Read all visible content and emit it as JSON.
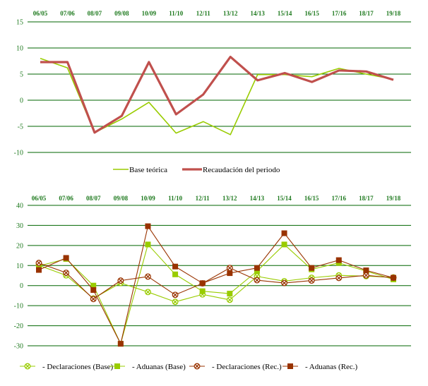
{
  "chart_data": [
    {
      "type": "line",
      "categories": [
        "06/05",
        "07/06",
        "08/07",
        "09/08",
        "10/09",
        "11/10",
        "12/11",
        "13/12",
        "14/13",
        "15/14",
        "16/15",
        "17/16",
        "18/17",
        "19/18"
      ],
      "ylim": [
        -10,
        15
      ],
      "yticks": [
        15,
        10,
        5,
        0,
        -5,
        -10
      ],
      "grid": true,
      "legend": "bottom",
      "series": [
        {
          "name": "Base teórica",
          "color": "#99cc00",
          "marker": "none",
          "width": "thin",
          "values": [
            8.0,
            6.2,
            -6.2,
            -3.6,
            -0.4,
            -6.3,
            -4.1,
            -6.6,
            4.9,
            4.9,
            4.5,
            6.1,
            5.0,
            4.0
          ]
        },
        {
          "name": "Recaudación del periodo",
          "color": "#c0504d",
          "marker": "none",
          "width": "thick",
          "values": [
            7.3,
            7.3,
            -6.2,
            -3.0,
            7.3,
            -2.7,
            1.1,
            8.3,
            3.8,
            5.2,
            3.5,
            5.7,
            5.5,
            3.9
          ]
        }
      ]
    },
    {
      "type": "line",
      "categories": [
        "06/05",
        "07/06",
        "08/07",
        "09/08",
        "10/09",
        "11/10",
        "12/11",
        "13/12",
        "14/13",
        "15/14",
        "16/15",
        "17/16",
        "18/17",
        "19/18"
      ],
      "ylim": [
        -30,
        40
      ],
      "yticks": [
        40,
        30,
        20,
        10,
        0,
        -10,
        -20,
        -30
      ],
      "grid": true,
      "legend": "bottom",
      "series": [
        {
          "name": "- Declaraciones (Base)",
          "color": "#99cc00",
          "marker": "x-circle",
          "values": [
            10.1,
            5.1,
            -6.4,
            1.3,
            -3.2,
            -8.1,
            -4.4,
            -7.1,
            4.6,
            2.2,
            3.9,
            5.1,
            4.7,
            4.1
          ]
        },
        {
          "name": "- Aduanas (Base)",
          "color": "#99cc00",
          "marker": "square",
          "values": [
            9.8,
            13.3,
            0.0,
            -29.0,
            20.5,
            5.6,
            -2.8,
            -4.0,
            7.2,
            20.5,
            8.1,
            11.3,
            7.2,
            3.1
          ]
        },
        {
          "name": "- Declaraciones (Rec.)",
          "color": "#993300",
          "marker": "x-circle",
          "values": [
            11.3,
            6.4,
            -6.7,
            2.5,
            4.5,
            -4.6,
            1.1,
            8.8,
            2.7,
            1.3,
            2.5,
            3.8,
            5.1,
            3.9
          ]
        },
        {
          "name": "- Aduanas (Rec.)",
          "color": "#993300",
          "marker": "square",
          "values": [
            7.8,
            13.8,
            -2.2,
            -29.0,
            29.6,
            9.5,
            1.2,
            6.2,
            8.8,
            26.1,
            8.8,
            12.7,
            7.6,
            3.9
          ]
        }
      ]
    }
  ]
}
